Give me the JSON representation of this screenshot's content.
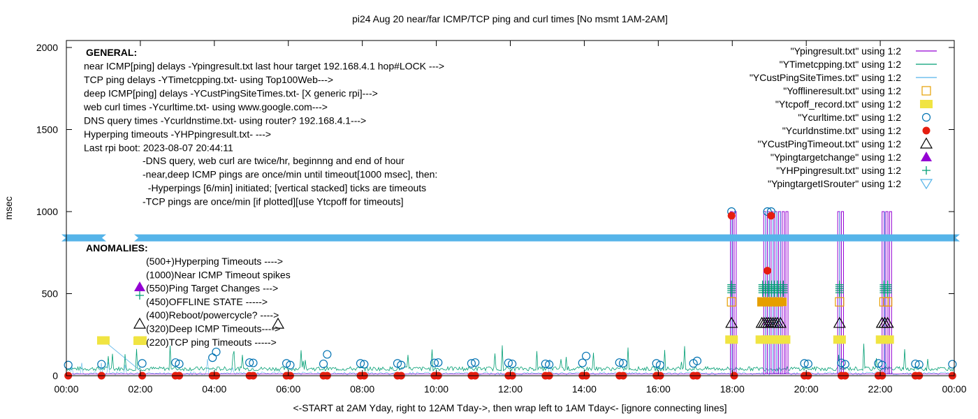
{
  "chart_data": {
    "type": "line",
    "title": "pi24 Aug 20  near/far ICMP/TCP ping and curl times [No msmt 1AM-2AM]",
    "xlabel": "<-START at 2AM Yday, right to 12AM Tday->, then wrap left to 1AM Tday<- [ignore connecting lines]",
    "ylabel": "msec",
    "xlim": [
      0,
      24
    ],
    "ylim": [
      0,
      2100
    ],
    "yticks": [
      0,
      500,
      1000,
      1500,
      2000
    ],
    "xtick_labels": [
      "00:00",
      "02:00",
      "04:00",
      "06:00",
      "08:00",
      "10:00",
      "12:00",
      "14:00",
      "16:00",
      "18:00",
      "20:00",
      "22:00",
      "00:00"
    ],
    "band_y": 840,
    "legend_position": "top-right",
    "legend": [
      {
        "label": "\"Ypingresult.txt\" using 1:2",
        "marker": "line",
        "color": "#9400d3"
      },
      {
        "label": "\"YTimetcpping.txt\" using 1:2",
        "marker": "line",
        "color": "#009e73"
      },
      {
        "label": "\"YCustPingSiteTimes.txt\" using 1:2",
        "marker": "line",
        "color": "#56b4e9"
      },
      {
        "label": "\"Yofflineresult.txt\" using 1:2",
        "marker": "open-square",
        "color": "#e69f00"
      },
      {
        "label": "\"Ytcpoff_record.txt\" using 1:2",
        "marker": "filled-square",
        "color": "#f0e442"
      },
      {
        "label": "\"Ycurltime.txt\" using 1:2",
        "marker": "open-circle",
        "color": "#0072b2"
      },
      {
        "label": "\"Ycurldnstime.txt\" using 1:2",
        "marker": "filled-circle",
        "color": "#e51e10"
      },
      {
        "label": "\"YCustPingTimeout.txt\" using 1:2",
        "marker": "open-triangle",
        "color": "#000000"
      },
      {
        "label": "\"Ypingtargetchange\" using 1:2",
        "marker": "filled-triangle",
        "color": "#9400d3"
      },
      {
        "label": "\"YHPpingresult.txt\" using 1:2",
        "marker": "plus",
        "color": "#009e73"
      },
      {
        "label": "\"YpingtargetISrouter\" using 1:2",
        "marker": "open-down-triangle",
        "color": "#56b4e9"
      }
    ],
    "annotations_general": [
      "GENERAL:",
      "near ICMP[ping] delays -Ypingresult.txt last hour target 192.168.4.1 hop#LOCK --->",
      "TCP ping delays -YTimetcpping.txt- using Top100Web--->",
      "deep ICMP[ping] delays -YCustPingSiteTimes.txt- [X generic rpi]--->",
      "web curl times -Ycurltime.txt- using www.google.com--->",
      "DNS query times -Ycurldnstime.txt- using router? 192.168.4.1--->",
      "Hyperping timeouts -YHPpingresult.txt- --->",
      "Last rpi boot: 2023-08-07 20:44:11"
    ],
    "annotations_notes": [
      "-DNS query, web curl are twice/hr, beginnng and end of hour",
      "-near,deep ICMP pings are once/min until timeout[1000 msec], then:",
      "  -Hyperpings [6/min] initiated; [vertical stacked] ticks are timeouts",
      "-TCP pings are once/min [if plotted][use Ytcpoff for timeouts]"
    ],
    "annotations_anomalies": {
      "header": "ANOMALIES:",
      "items": [
        "(500+)Hyperping Timeouts ---->",
        "(1000)Near ICMP Timeout spikes",
        "(550)Ping Target Changes --->",
        "(450)OFFLINE STATE ----->",
        "(400)Reboot/powercycle? ---->",
        "(320)Deep ICMP Timeouts---->",
        "(220)TCP ping Timeouts ----->"
      ]
    },
    "series": {
      "near_icmp_spikes": [
        17.95,
        18.05,
        18.85,
        18.95,
        19.05,
        19.15,
        19.25,
        19.35,
        19.45,
        20.85,
        20.95,
        22.05,
        22.15,
        22.25
      ],
      "hyperping_timeouts_x": [
        17.98,
        18.82,
        18.9,
        18.98,
        19.06,
        19.14,
        19.22,
        19.3,
        19.38,
        20.9,
        22.1,
        22.2
      ],
      "hyperping_timeout_y": 530,
      "offline_x": [
        17.98,
        18.8,
        18.95,
        19.1,
        19.25,
        20.9,
        22.1,
        22.2
      ],
      "offline_y": 450,
      "deep_icmp_timeouts_x": [
        17.98,
        18.8,
        18.86,
        18.92,
        18.98,
        19.04,
        19.1,
        19.16,
        19.22,
        19.3,
        20.9,
        22.05,
        22.12,
        22.2
      ],
      "deep_icmp_timeout_y": 320,
      "tcp_timeouts_x": [
        17.98,
        18.8,
        18.95,
        19.1,
        19.25,
        19.4,
        20.9,
        22.05,
        22.2
      ],
      "tcp_timeout_y": 220,
      "tcp_timeouts_early": [
        {
          "x": 1.0,
          "y": 215
        },
        {
          "x": 2.0,
          "y": 215
        }
      ],
      "curl_times": [
        {
          "x": 0.05,
          "y": 65
        },
        {
          "x": 0.95,
          "y": 70
        },
        {
          "x": 2.05,
          "y": 75
        },
        {
          "x": 2.95,
          "y": 80
        },
        {
          "x": 3.05,
          "y": 72
        },
        {
          "x": 3.95,
          "y": 110
        },
        {
          "x": 4.05,
          "y": 145
        },
        {
          "x": 4.95,
          "y": 80
        },
        {
          "x": 5.05,
          "y": 78
        },
        {
          "x": 5.95,
          "y": 75
        },
        {
          "x": 6.05,
          "y": 65
        },
        {
          "x": 6.95,
          "y": 72
        },
        {
          "x": 7.05,
          "y": 130
        },
        {
          "x": 7.95,
          "y": 75
        },
        {
          "x": 8.05,
          "y": 70
        },
        {
          "x": 8.95,
          "y": 75
        },
        {
          "x": 9.05,
          "y": 65
        },
        {
          "x": 9.95,
          "y": 78
        },
        {
          "x": 10.05,
          "y": 80
        },
        {
          "x": 10.95,
          "y": 75
        },
        {
          "x": 11.05,
          "y": 80
        },
        {
          "x": 11.95,
          "y": 78
        },
        {
          "x": 12.05,
          "y": 72
        },
        {
          "x": 12.95,
          "y": 72
        },
        {
          "x": 13.05,
          "y": 68
        },
        {
          "x": 13.95,
          "y": 78
        },
        {
          "x": 14.05,
          "y": 120
        },
        {
          "x": 14.95,
          "y": 80
        },
        {
          "x": 15.05,
          "y": 76
        },
        {
          "x": 15.95,
          "y": 75
        },
        {
          "x": 16.05,
          "y": 65
        },
        {
          "x": 16.95,
          "y": 75
        },
        {
          "x": 17.05,
          "y": 90
        },
        {
          "x": 17.98,
          "y": 1000
        },
        {
          "x": 18.95,
          "y": 1000
        },
        {
          "x": 19.05,
          "y": 1000
        },
        {
          "x": 19.95,
          "y": 75
        },
        {
          "x": 20.05,
          "y": 72
        },
        {
          "x": 20.95,
          "y": 78
        },
        {
          "x": 21.05,
          "y": 70
        },
        {
          "x": 21.95,
          "y": 75
        },
        {
          "x": 22.05,
          "y": 65
        },
        {
          "x": 22.95,
          "y": 72
        },
        {
          "x": 23.05,
          "y": 68
        },
        {
          "x": 23.95,
          "y": 70
        }
      ],
      "dns_times": [
        {
          "x": 0.05,
          "y": 0
        },
        {
          "x": 0.95,
          "y": 0
        },
        {
          "x": 2.05,
          "y": 0
        },
        {
          "x": 2.95,
          "y": 0
        },
        {
          "x": 3.05,
          "y": 0
        },
        {
          "x": 3.95,
          "y": 0
        },
        {
          "x": 4.05,
          "y": 0
        },
        {
          "x": 4.95,
          "y": 0
        },
        {
          "x": 5.05,
          "y": 0
        },
        {
          "x": 5.95,
          "y": 0
        },
        {
          "x": 6.05,
          "y": 0
        },
        {
          "x": 6.95,
          "y": 0
        },
        {
          "x": 7.05,
          "y": 0
        },
        {
          "x": 7.95,
          "y": 0
        },
        {
          "x": 8.05,
          "y": 0
        },
        {
          "x": 8.95,
          "y": 0
        },
        {
          "x": 9.05,
          "y": 0
        },
        {
          "x": 9.95,
          "y": 0
        },
        {
          "x": 10.05,
          "y": 0
        },
        {
          "x": 10.95,
          "y": 0
        },
        {
          "x": 11.05,
          "y": 0
        },
        {
          "x": 11.95,
          "y": 0
        },
        {
          "x": 12.05,
          "y": 0
        },
        {
          "x": 12.95,
          "y": 0
        },
        {
          "x": 13.05,
          "y": 0
        },
        {
          "x": 13.95,
          "y": 0
        },
        {
          "x": 14.05,
          "y": 0
        },
        {
          "x": 14.95,
          "y": 0
        },
        {
          "x": 15.05,
          "y": 0
        },
        {
          "x": 15.95,
          "y": 0
        },
        {
          "x": 16.05,
          "y": 0
        },
        {
          "x": 16.95,
          "y": 0
        },
        {
          "x": 17.05,
          "y": 0
        },
        {
          "x": 17.98,
          "y": 975
        },
        {
          "x": 18.05,
          "y": 0
        },
        {
          "x": 18.95,
          "y": 640
        },
        {
          "x": 19.05,
          "y": 975
        },
        {
          "x": 19.95,
          "y": 0
        },
        {
          "x": 20.05,
          "y": 0
        },
        {
          "x": 20.95,
          "y": 0
        },
        {
          "x": 21.05,
          "y": 0
        },
        {
          "x": 21.95,
          "y": 0
        },
        {
          "x": 22.05,
          "y": 0
        },
        {
          "x": 22.95,
          "y": 0
        },
        {
          "x": 23.05,
          "y": 0
        },
        {
          "x": 23.95,
          "y": 0
        }
      ],
      "tcp_baseline": 30
    }
  }
}
